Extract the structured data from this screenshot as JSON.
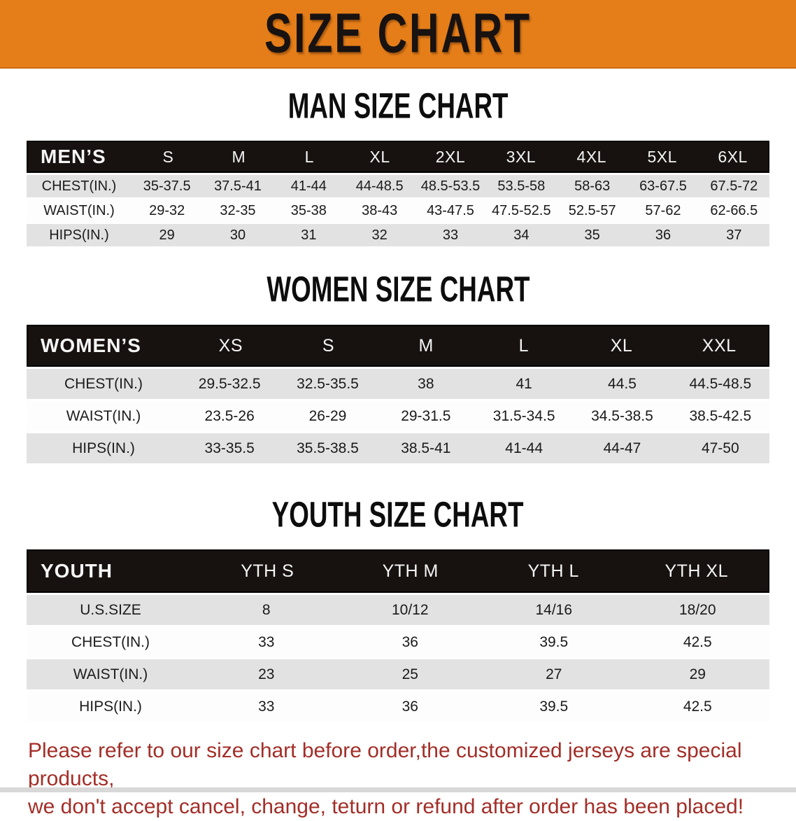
{
  "banner": {
    "title": "SIZE CHART",
    "bg_color": "#e57e19",
    "text_color": "#181211"
  },
  "sections": {
    "men": {
      "heading": "MAN SIZE CHART",
      "table": {
        "corner": "MEN’S",
        "columns": [
          "S",
          "M",
          "L",
          "XL",
          "2XL",
          "3XL",
          "4XL",
          "5XL",
          "6XL"
        ],
        "rows": [
          {
            "label": "CHEST(IN.)",
            "values": [
              "35-37.5",
              "37.5-41",
              "41-44",
              "44-48.5",
              "48.5-53.5",
              "53.5-58",
              "58-63",
              "63-67.5",
              "67.5-72"
            ]
          },
          {
            "label": "WAIST(IN.)",
            "values": [
              "29-32",
              "32-35",
              "35-38",
              "38-43",
              "43-47.5",
              "47.5-52.5",
              "52.5-57",
              "57-62",
              "62-66.5"
            ]
          },
          {
            "label": "HIPS(IN.)",
            "values": [
              "29",
              "30",
              "31",
              "32",
              "33",
              "34",
              "35",
              "36",
              "37"
            ]
          }
        ]
      }
    },
    "women": {
      "heading": "WOMEN SIZE CHART",
      "table": {
        "corner": "WOMEN’S",
        "columns": [
          "XS",
          "S",
          "M",
          "L",
          "XL",
          "XXL"
        ],
        "rows": [
          {
            "label": "CHEST(IN.)",
            "values": [
              "29.5-32.5",
              "32.5-35.5",
              "38",
              "41",
              "44.5",
              "44.5-48.5"
            ]
          },
          {
            "label": "WAIST(IN.)",
            "values": [
              "23.5-26",
              "26-29",
              "29-31.5",
              "31.5-34.5",
              "34.5-38.5",
              "38.5-42.5"
            ]
          },
          {
            "label": "HIPS(IN.)",
            "values": [
              "33-35.5",
              "35.5-38.5",
              "38.5-41",
              "41-44",
              "44-47",
              "47-50"
            ]
          }
        ]
      }
    },
    "youth": {
      "heading": "YOUTH SIZE CHART",
      "table": {
        "corner": "YOUTH",
        "columns": [
          "YTH S",
          "YTH M",
          "YTH L",
          "YTH XL"
        ],
        "rows": [
          {
            "label": "U.S.SIZE",
            "values": [
              "8",
              "10/12",
              "14/16",
              "18/20"
            ]
          },
          {
            "label": "CHEST(IN.)",
            "values": [
              "33",
              "36",
              "39.5",
              "42.5"
            ]
          },
          {
            "label": "WAIST(IN.)",
            "values": [
              "23",
              "25",
              "27",
              "29"
            ]
          },
          {
            "label": "HIPS(IN.)",
            "values": [
              "33",
              "36",
              "39.5",
              "42.5"
            ]
          }
        ]
      }
    }
  },
  "disclaimer": {
    "line1": "Please refer to our size chart before order,the customized jerseys are special products,",
    "line2": "we don't accept cancel, change, teturn or refund after order has been placed!",
    "color": "#a32e28"
  }
}
